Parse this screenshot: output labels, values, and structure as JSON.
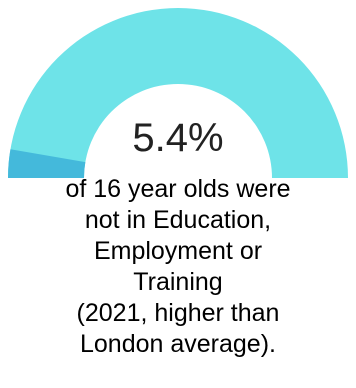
{
  "chart_data": {
    "type": "gauge",
    "value": 5.4,
    "min": 0,
    "max": 100,
    "value_label": "5.4%",
    "fill_color": "#44b9db",
    "track_color": "#6ee3e8"
  },
  "caption": {
    "lines": [
      "of 16 year olds were",
      "not in Education,",
      "Employment or",
      "Training",
      "(2021, higher than",
      "London average)."
    ]
  }
}
